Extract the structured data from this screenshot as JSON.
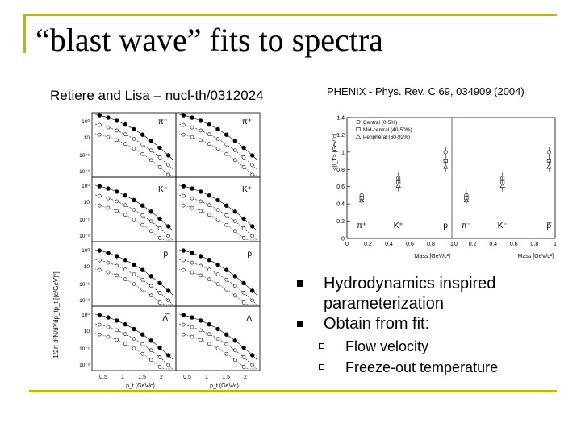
{
  "slide": {
    "title": "“blast wave” fits to spectra",
    "left_caption": "Retiere and Lisa – nucl-th/0312024",
    "right_caption": "PHENIX - Phys. Rev. C 69, 034909 (2004)",
    "bullets": [
      {
        "text": "Hydrodynamics inspired",
        "text2": "parameterization"
      },
      {
        "text": "Obtain from fit:"
      }
    ],
    "sub_bullets": [
      "Flow velocity",
      "Freeze-out temperature"
    ]
  },
  "spectra_figure": {
    "ylabel": "1/2π d²N/dYdp_tp_t [(c/GeV)²]",
    "xlabel": "p_t (GeV/c)",
    "x_ticks": [
      "0.5",
      "1",
      "1.5",
      "2"
    ],
    "y_ticks": [
      "10⁰",
      "10",
      "10⁻¹",
      "10⁻²"
    ],
    "panel_labels": [
      "π⁻",
      "π⁺",
      "K⁻",
      "K⁺",
      "p̅",
      "p",
      "Λ̅",
      "Λ"
    ]
  },
  "chart_data": {
    "type": "scatter",
    "ylabel": "<β_T> [GeV/c]",
    "xlabel": "Mass [GeV/c²]",
    "ylim": [
      0,
      1.4
    ],
    "y_ticks": [
      "0",
      "0.2",
      "0.4",
      "0.6",
      "0.8",
      "1",
      "1.2",
      "1.4"
    ],
    "x_ticks_left": [
      "0",
      "0.2",
      "0.4",
      "0.6",
      "0.8",
      "1"
    ],
    "x_ticks_right": [
      "0",
      "0.2",
      "0.4",
      "0.6",
      "0.8",
      "1"
    ],
    "legend": [
      "Central (0-5%)",
      "Mid-central (40-50%)",
      "Peripheral (60-92%)"
    ],
    "particle_labels_left": [
      "π⁺",
      "K⁺",
      "p"
    ],
    "particle_labels_right": [
      "π⁻",
      "K⁻",
      "p̅"
    ],
    "series": [
      {
        "name": "Central (0-5%)",
        "mass": [
          0.14,
          0.49,
          0.94
        ],
        "values": [
          0.5,
          0.7,
          1.0
        ]
      },
      {
        "name": "Mid-central (40-50%)",
        "mass": [
          0.14,
          0.49,
          0.94
        ],
        "values": [
          0.47,
          0.65,
          0.9
        ]
      },
      {
        "name": "Peripheral (60-92%)",
        "mass": [
          0.14,
          0.49,
          0.94
        ],
        "values": [
          0.44,
          0.61,
          0.83
        ]
      }
    ]
  }
}
